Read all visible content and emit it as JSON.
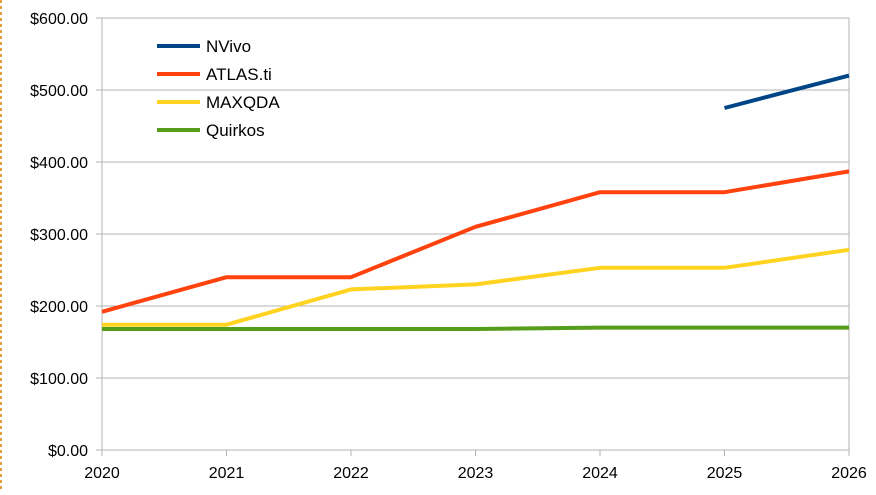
{
  "chart_data": {
    "type": "line",
    "title": "",
    "xlabel": "",
    "ylabel": "",
    "x": [
      2020,
      2021,
      2022,
      2023,
      2024,
      2025,
      2026
    ],
    "xlim": [
      2020,
      2026
    ],
    "ylim": [
      0,
      600
    ],
    "y_ticks": [
      "$0.00",
      "$100.00",
      "$200.00",
      "$300.00",
      "$400.00",
      "$500.00",
      "$600.00"
    ],
    "y_tick_values": [
      0,
      100,
      200,
      300,
      400,
      500,
      600
    ],
    "x_ticks": [
      "2020",
      "2021",
      "2022",
      "2023",
      "2024",
      "2025",
      "2026"
    ],
    "grid": "horizontal",
    "legend_position": "top-left",
    "series": [
      {
        "name": "NVivo",
        "color": "#004586",
        "x": [
          2025,
          2026
        ],
        "values": [
          475,
          520
        ]
      },
      {
        "name": "ATLAS.ti",
        "color": "#ff420e",
        "x": [
          2020,
          2021,
          2022,
          2023,
          2024,
          2025,
          2026
        ],
        "values": [
          192,
          240,
          240,
          310,
          358,
          358,
          387
        ]
      },
      {
        "name": "MAXQDA",
        "color": "#ffd320",
        "x": [
          2020,
          2021,
          2022,
          2023,
          2024,
          2025,
          2026
        ],
        "values": [
          174,
          174,
          223,
          230,
          253,
          253,
          278
        ]
      },
      {
        "name": "Quirkos",
        "color": "#579d1c",
        "x": [
          2020,
          2021,
          2022,
          2023,
          2024,
          2025,
          2026
        ],
        "values": [
          168,
          168,
          168,
          168,
          170,
          170,
          170
        ]
      }
    ]
  }
}
